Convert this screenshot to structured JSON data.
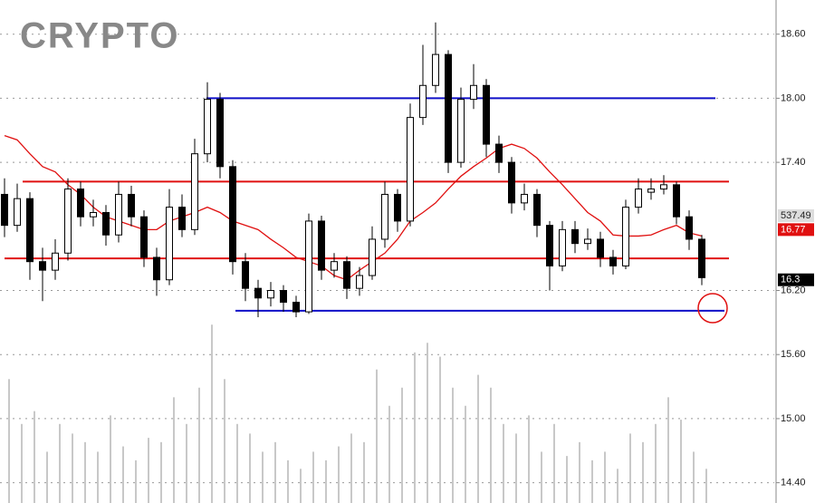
{
  "chart_data": {
    "type": "candlestick",
    "title": "CRYPTO",
    "ylim": [
      14.21,
      18.92
    ],
    "yticks": [
      {
        "value": 18.6,
        "label": "18.60"
      },
      {
        "value": 18.0,
        "label": "18.00"
      },
      {
        "value": 17.4,
        "label": "17.40"
      },
      {
        "value": 16.2,
        "label": "16.20"
      },
      {
        "value": 15.6,
        "label": "15.60"
      },
      {
        "value": 15.0,
        "label": "15.00"
      },
      {
        "value": 14.4,
        "label": "14.40"
      }
    ],
    "grid": true,
    "up_color": "#ffffff",
    "down_color": "#000000",
    "ohlc": {
      "open": [
        17.1,
        16.81,
        17.06,
        16.47,
        16.39,
        16.55,
        17.15,
        16.89,
        16.93,
        16.72,
        17.1,
        16.89,
        16.51,
        16.3,
        16.98,
        16.77,
        17.48,
        17.99,
        17.36,
        16.47,
        16.22,
        16.13,
        16.2,
        16.09,
        16.0,
        16.85,
        16.39,
        16.47,
        16.22,
        16.34,
        16.68,
        17.1,
        16.85,
        17.82,
        18.12,
        18.41,
        17.4,
        17.99,
        18.12,
        17.57,
        17.4,
        17.02,
        17.1,
        16.81,
        16.43,
        16.77,
        16.64,
        16.68,
        16.51,
        16.43,
        16.98,
        17.12,
        17.15,
        17.19,
        16.89,
        16.68
      ],
      "high": [
        17.25,
        17.2,
        17.12,
        16.6,
        16.68,
        17.25,
        17.22,
        17.05,
        17.0,
        17.22,
        17.18,
        16.95,
        16.6,
        17.15,
        17.1,
        17.62,
        18.15,
        18.05,
        17.42,
        16.55,
        16.3,
        16.28,
        16.25,
        16.15,
        16.92,
        16.9,
        16.55,
        16.52,
        16.42,
        16.8,
        17.22,
        17.15,
        17.95,
        18.5,
        18.71,
        18.45,
        18.1,
        18.32,
        18.18,
        17.65,
        17.45,
        17.2,
        17.15,
        16.85,
        16.85,
        16.85,
        16.78,
        16.75,
        16.58,
        17.05,
        17.25,
        17.25,
        17.28,
        17.22,
        16.95,
        16.72
      ],
      "low": [
        16.7,
        16.75,
        16.3,
        16.1,
        16.3,
        16.48,
        16.8,
        16.8,
        16.62,
        16.65,
        16.8,
        16.42,
        16.15,
        16.25,
        16.7,
        16.72,
        17.4,
        17.25,
        16.35,
        16.1,
        15.95,
        16.05,
        16.0,
        15.95,
        15.98,
        16.3,
        16.32,
        16.12,
        16.15,
        16.3,
        16.6,
        16.75,
        16.8,
        17.75,
        18.05,
        17.3,
        17.35,
        17.9,
        17.45,
        17.3,
        16.92,
        16.95,
        16.7,
        16.2,
        16.38,
        16.55,
        16.58,
        16.42,
        16.35,
        16.4,
        16.92,
        17.05,
        17.1,
        16.82,
        16.58,
        16.25
      ],
      "close": [
        16.81,
        17.06,
        16.47,
        16.39,
        16.55,
        17.15,
        16.89,
        16.93,
        16.72,
        17.1,
        16.89,
        16.51,
        16.3,
        16.98,
        16.77,
        17.48,
        17.99,
        17.36,
        16.47,
        16.22,
        16.13,
        16.2,
        16.09,
        16.0,
        16.85,
        16.39,
        16.47,
        16.22,
        16.34,
        16.68,
        17.1,
        16.85,
        17.82,
        18.12,
        18.41,
        17.4,
        17.99,
        18.12,
        17.57,
        17.4,
        17.02,
        17.1,
        16.81,
        16.43,
        16.77,
        16.64,
        16.68,
        16.51,
        16.43,
        16.98,
        17.15,
        17.15,
        17.19,
        16.89,
        16.68,
        16.32
      ]
    },
    "moving_average": {
      "color": "#e01010",
      "values": [
        17.65,
        17.61,
        17.48,
        17.36,
        17.31,
        17.19,
        17.1,
        16.98,
        16.89,
        16.85,
        16.81,
        16.77,
        16.77,
        16.85,
        16.89,
        16.93,
        16.98,
        16.93,
        16.85,
        16.81,
        16.77,
        16.68,
        16.6,
        16.51,
        16.47,
        16.43,
        16.34,
        16.3,
        16.39,
        16.47,
        16.55,
        16.68,
        16.85,
        16.93,
        17.02,
        17.15,
        17.27,
        17.36,
        17.44,
        17.53,
        17.57,
        17.53,
        17.44,
        17.31,
        17.19,
        17.06,
        16.93,
        16.85,
        16.72,
        16.71,
        16.71,
        16.72,
        16.77,
        16.81,
        16.74,
        16.71
      ]
    },
    "volume": {
      "color": "#c8c8c8",
      "values": [
        15.37,
        14.95,
        15.07,
        14.69,
        14.95,
        14.86,
        14.78,
        14.69,
        15.03,
        14.74,
        14.61,
        14.82,
        14.78,
        15.2,
        14.95,
        15.29,
        15.88,
        15.37,
        14.95,
        14.86,
        14.69,
        14.78,
        14.61,
        14.53,
        14.69,
        14.61,
        14.74,
        14.86,
        14.78,
        15.46,
        15.12,
        15.29,
        15.62,
        15.71,
        15.58,
        15.29,
        15.12,
        15.41,
        15.29,
        14.95,
        14.86,
        15.03,
        14.69,
        14.95,
        14.65,
        14.78,
        14.61,
        14.69,
        14.53,
        14.86,
        14.78,
        14.95,
        15.2,
        14.99,
        14.69,
        14.53
      ]
    },
    "levels": [
      {
        "value": 18.0,
        "color": "#1010c8"
      },
      {
        "value": 16.01,
        "color": "#1010c8"
      },
      {
        "value": 17.22,
        "color": "#e01010"
      },
      {
        "value": 16.5,
        "color": "#e01010"
      }
    ],
    "price_markers": [
      {
        "value": 16.77,
        "label": "16.77",
        "color": "#e01010"
      },
      {
        "value": 16.3,
        "label": "16.3",
        "color": "#000000"
      }
    ],
    "volume_marker": {
      "label": "537.49",
      "color": "#dddddd"
    }
  }
}
